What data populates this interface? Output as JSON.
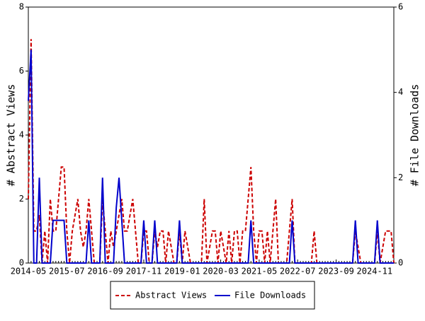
{
  "chart_data": {
    "type": "line",
    "y_label": "# Abstract Views",
    "y2_label": "# File Downloads",
    "categories": [
      "2014-05",
      null,
      null,
      null,
      null,
      null,
      null,
      null,
      null,
      null,
      null,
      null,
      null,
      null,
      "2015-07",
      null,
      null,
      null,
      null,
      null,
      null,
      null,
      null,
      null,
      null,
      null,
      null,
      null,
      "2016-09",
      null,
      null,
      null,
      null,
      null,
      null,
      null,
      null,
      null,
      null,
      null,
      null,
      null,
      "2017-11",
      null,
      null,
      null,
      null,
      null,
      null,
      null,
      null,
      null,
      null,
      null,
      null,
      null,
      "2019-01",
      null,
      null,
      null,
      null,
      null,
      null,
      null,
      null,
      null,
      null,
      null,
      null,
      null,
      "2020-03",
      null,
      null,
      null,
      null,
      null,
      null,
      null,
      null,
      null,
      null,
      null,
      null,
      null,
      "2021-05",
      null,
      null,
      null,
      null,
      null,
      null,
      null,
      null,
      null,
      null,
      null,
      null,
      null,
      "2022-07",
      null,
      null,
      null,
      null,
      null,
      null,
      null,
      null,
      null,
      null,
      null,
      null,
      null,
      "2023-09",
      null,
      null,
      null,
      null,
      null,
      null,
      null,
      null,
      null,
      null,
      null,
      null,
      null,
      "2024-11",
      null,
      null,
      null,
      null,
      null,
      null,
      null
    ],
    "series": [
      {
        "name": "Abstract Views",
        "color": "#cc0000",
        "line_style": "dashed",
        "values": [
          2,
          7,
          1,
          1,
          1.5,
          0,
          1,
          0,
          2,
          1,
          1,
          2,
          3,
          3,
          1,
          0,
          1,
          1.5,
          2,
          1,
          0.5,
          1,
          2,
          1,
          0,
          0,
          0,
          2,
          1,
          0,
          1,
          0.5,
          1,
          1.5,
          2,
          1,
          1,
          1.5,
          2,
          1,
          0,
          0,
          1,
          1,
          0,
          0,
          1,
          0.5,
          1,
          1,
          0,
          1,
          0.5,
          0,
          0,
          1,
          0,
          1,
          0.5,
          0,
          0,
          0,
          0,
          0,
          2,
          0,
          0.5,
          1,
          1,
          0,
          1,
          0.5,
          0,
          1,
          0,
          1,
          1,
          0,
          1,
          1,
          2,
          3,
          1,
          0,
          1,
          1,
          0,
          1,
          0,
          1,
          2,
          0,
          0,
          0,
          0,
          1,
          2,
          0,
          0,
          0,
          0,
          0,
          0,
          0,
          1,
          0,
          0,
          0,
          0,
          0,
          0,
          0,
          0,
          0,
          0,
          0,
          0,
          0,
          0,
          1,
          0.5,
          0,
          0,
          0,
          0,
          0,
          0,
          1,
          0,
          0.5,
          1,
          1,
          1,
          0
        ]
      },
      {
        "name": "File Downloads",
        "color": "#0000cc",
        "line_style": "solid",
        "axis": "y2",
        "values": [
          3.8,
          5,
          0,
          0,
          2,
          0,
          0,
          0,
          0,
          1,
          1,
          1,
          1,
          1,
          0,
          0,
          0,
          0,
          0,
          0,
          0,
          0,
          1,
          0,
          0,
          0,
          0,
          2,
          0,
          0,
          0,
          0,
          1.3,
          2,
          1,
          0,
          0,
          0,
          0,
          0,
          0,
          0,
          1,
          0,
          0,
          0,
          1,
          0,
          0,
          0,
          0,
          0,
          0,
          0,
          0,
          1,
          0,
          0,
          0,
          0,
          0,
          0,
          0,
          0,
          0,
          0,
          0,
          0,
          0,
          0,
          0,
          0,
          0,
          0,
          0,
          0,
          0,
          0,
          0,
          0,
          0,
          1,
          0,
          0,
          0,
          0,
          0,
          0,
          0,
          0,
          0,
          0,
          0,
          0,
          0,
          0,
          1,
          0,
          0,
          0,
          0,
          0,
          0,
          0,
          0,
          0,
          0,
          0,
          0,
          0,
          0,
          0,
          0,
          0,
          0,
          0,
          0,
          0,
          0,
          1,
          0,
          0,
          0,
          0,
          0,
          0,
          0,
          1,
          0,
          0,
          0,
          0,
          0,
          0
        ]
      }
    ],
    "ylim": [
      0,
      8
    ],
    "yticks": [
      0,
      2,
      4,
      6,
      8
    ],
    "y2lim": [
      0,
      6
    ],
    "y2ticks": [
      0,
      2,
      4,
      6
    ],
    "legend": "bottom"
  }
}
